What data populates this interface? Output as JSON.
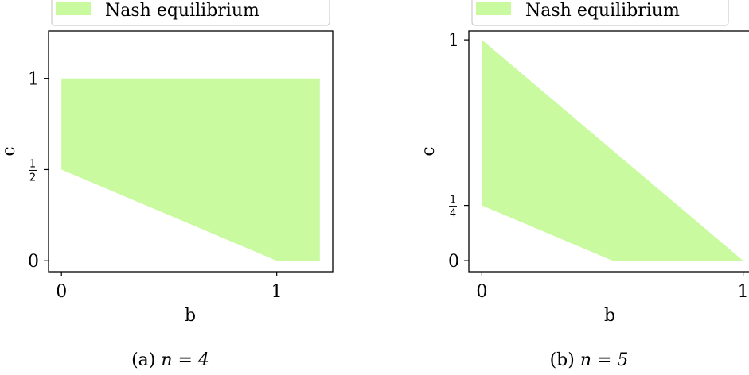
{
  "colors": {
    "region": "#c9fa9f",
    "axis": "#000000",
    "legend_border": "#cccccc"
  },
  "chart_data": [
    {
      "type": "area",
      "caption_prefix": "(a) ",
      "caption_math": "n = 4",
      "xlabel": "b",
      "ylabel": "c",
      "xlim": [
        -0.06,
        1.26
      ],
      "ylim": [
        -0.06,
        1.26
      ],
      "xticks": [
        {
          "value": 0,
          "label": "0"
        },
        {
          "value": 1,
          "label": "1"
        }
      ],
      "yticks": [
        {
          "value": 0,
          "label": "0",
          "kind": "text"
        },
        {
          "value": 0.5,
          "num": "1",
          "den": "2",
          "kind": "frac"
        },
        {
          "value": 1,
          "label": "1",
          "kind": "text"
        }
      ],
      "legend": {
        "label": "Nash equilibrium",
        "placement": "top"
      },
      "series": [
        {
          "name": "Nash equilibrium",
          "polygon": [
            [
              0,
              0.5
            ],
            [
              0,
              1
            ],
            [
              1.2,
              1
            ],
            [
              1.2,
              0
            ],
            [
              1,
              0
            ]
          ]
        }
      ]
    },
    {
      "type": "area",
      "caption_prefix": "(b) ",
      "caption_math": "n = 5",
      "xlabel": "b",
      "ylabel": "c",
      "xlim": [
        -0.05,
        1.05
      ],
      "ylim": [
        -0.05,
        1.04
      ],
      "xticks": [
        {
          "value": 0,
          "label": "0"
        },
        {
          "value": 1,
          "label": "1"
        }
      ],
      "yticks": [
        {
          "value": 0,
          "label": "0",
          "kind": "text"
        },
        {
          "value": 0.25,
          "num": "1",
          "den": "4",
          "kind": "frac"
        },
        {
          "value": 1,
          "label": "1",
          "kind": "text"
        }
      ],
      "legend": {
        "label": "Nash equilibrium",
        "placement": "top"
      },
      "series": [
        {
          "name": "Nash equilibrium",
          "polygon": [
            [
              0,
              0.25
            ],
            [
              0,
              1
            ],
            [
              1,
              0
            ],
            [
              0.5,
              0
            ]
          ]
        }
      ]
    }
  ]
}
